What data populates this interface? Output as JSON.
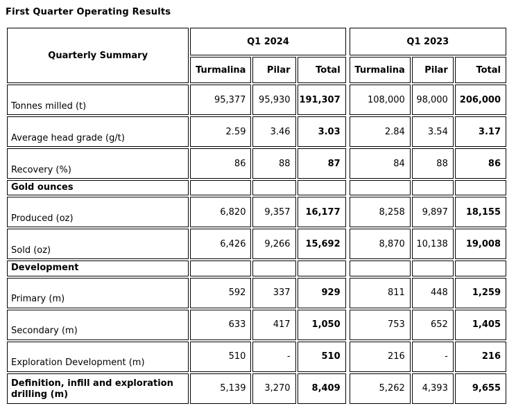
{
  "title": "First Quarter Operating Results",
  "colors": {
    "border": "#000000",
    "background": "#ffffff",
    "text": "#000000"
  },
  "table": {
    "corner_header": "Quarterly Summary",
    "groups": [
      {
        "label": "Q1 2024",
        "columns": [
          "Turmalina",
          "Pilar",
          "Total"
        ]
      },
      {
        "label": "Q1 2023",
        "columns": [
          "Turmalina",
          "Pilar",
          "Total"
        ]
      }
    ],
    "rows": [
      {
        "type": "data",
        "label": "Tonnes milled (t)",
        "values": [
          "95,377",
          "95,930",
          "191,307",
          "108,000",
          "98,000",
          "206,000"
        ]
      },
      {
        "type": "data",
        "label": "Average head grade (g/t)",
        "values": [
          "2.59",
          "3.46",
          "3.03",
          "2.84",
          "3.54",
          "3.17"
        ]
      },
      {
        "type": "data",
        "label": "Recovery (%)",
        "values": [
          "86",
          "88",
          "87",
          "84",
          "88",
          "86"
        ]
      },
      {
        "type": "section",
        "label": "Gold ounces",
        "values": [
          "",
          "",
          "",
          "",
          "",
          ""
        ]
      },
      {
        "type": "data",
        "label": "Produced (oz)",
        "values": [
          "6,820",
          "9,357",
          "16,177",
          "8,258",
          "9,897",
          "18,155"
        ]
      },
      {
        "type": "data",
        "label": "Sold (oz)",
        "values": [
          "6,426",
          "9,266",
          "15,692",
          "8,870",
          "10,138",
          "19,008"
        ]
      },
      {
        "type": "section",
        "label": "Development",
        "values": [
          "",
          "",
          "",
          "",
          "",
          ""
        ]
      },
      {
        "type": "data",
        "label": "Primary (m)",
        "values": [
          "592",
          "337",
          "929",
          "811",
          "448",
          "1,259"
        ]
      },
      {
        "type": "data",
        "label": "Secondary (m)",
        "values": [
          "633",
          "417",
          "1,050",
          "753",
          "652",
          "1,405"
        ]
      },
      {
        "type": "data",
        "label": "Exploration Development (m)",
        "values": [
          "510",
          "-",
          "510",
          "216",
          "-",
          "216"
        ]
      },
      {
        "type": "data",
        "label": "Definition, infill and exploration drilling (m)",
        "bold_label": true,
        "values": [
          "5,139",
          "3,270",
          "8,409",
          "5,262",
          "4,393",
          "9,655"
        ]
      }
    ]
  }
}
